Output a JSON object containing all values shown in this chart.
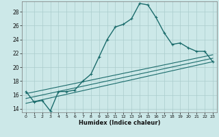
{
  "xlabel": "Humidex (Indice chaleur)",
  "xlim": [
    -0.5,
    23.5
  ],
  "ylim": [
    13.5,
    29.5
  ],
  "yticks": [
    14,
    16,
    18,
    20,
    22,
    24,
    26,
    28
  ],
  "xticks": [
    0,
    1,
    2,
    3,
    4,
    5,
    6,
    7,
    8,
    9,
    10,
    11,
    12,
    13,
    14,
    15,
    16,
    17,
    18,
    19,
    20,
    21,
    22,
    23
  ],
  "bg_color": "#cce8e8",
  "line_color": "#1a6b6b",
  "grid_color": "#aacccc",
  "line1_x": [
    0,
    1,
    2,
    3,
    4,
    5,
    6,
    7,
    8,
    9,
    10,
    11,
    12,
    13,
    14,
    15,
    16,
    17,
    18,
    19,
    20,
    21,
    22,
    23
  ],
  "line1_y": [
    16.5,
    15.0,
    15.2,
    13.7,
    16.5,
    16.5,
    16.7,
    18.0,
    19.0,
    21.5,
    24.0,
    25.8,
    26.2,
    27.0,
    29.2,
    29.0,
    27.2,
    25.0,
    23.3,
    23.5,
    22.8,
    22.3,
    22.3,
    20.8
  ],
  "line2_x": [
    0,
    23
  ],
  "line2_y": [
    14.8,
    20.8
  ],
  "line3_x": [
    0,
    23
  ],
  "line3_y": [
    15.5,
    21.3
  ],
  "line4_x": [
    0,
    23
  ],
  "line4_y": [
    16.2,
    21.8
  ]
}
